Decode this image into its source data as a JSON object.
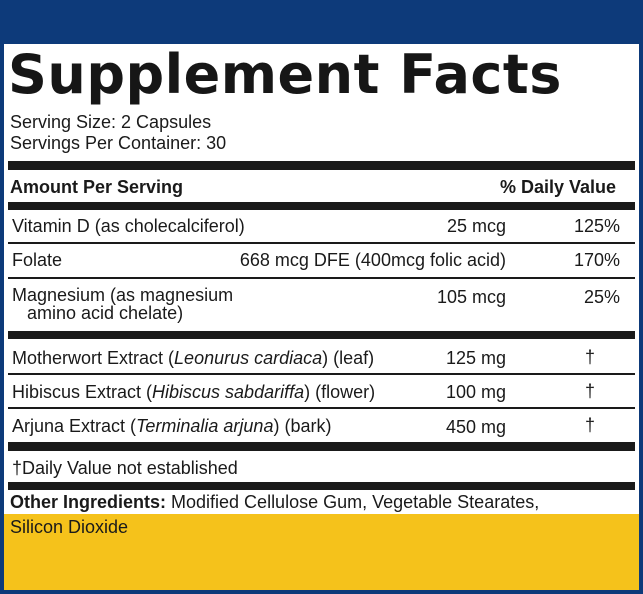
{
  "title": "Supplement Facts",
  "serving_size": "Serving Size: 2 Capsules",
  "servings_per_container": "Servings Per Container: 30",
  "header": {
    "amount_per_serving": "Amount Per Serving",
    "daily_value": "% Daily Value"
  },
  "nutrients": [
    {
      "name": "Vitamin D (as cholecalciferol)",
      "amount": "25 mcg",
      "dv": "125%"
    },
    {
      "name": "Folate",
      "amount": "668 mcg DFE (400mcg folic acid)",
      "dv": "170%"
    },
    {
      "name_line1": "Magnesium (as magnesium",
      "name_line2": "amino acid chelate)",
      "amount": "105 mcg",
      "dv": "25%"
    }
  ],
  "extracts": [
    {
      "prefix": "Motherwort Extract (",
      "latin": "Leonurus cardiaca",
      "suffix": ") (leaf)",
      "amount": "125 mg",
      "dv": "†"
    },
    {
      "prefix": "Hibiscus Extract (",
      "latin": "Hibiscus sabdariffa",
      "suffix": ") (flower)",
      "amount": "100 mg",
      "dv": "†"
    },
    {
      "prefix": "Arjuna Extract (",
      "latin": "Terminalia arjuna",
      "suffix": ") (bark)",
      "amount": "450 mg",
      "dv": "†"
    }
  ],
  "footnote": "†Daily Value not established",
  "other_ingredients": {
    "label": "Other Ingredients:",
    "line1": " Modified Cellulose Gum, Vegetable Stearates,",
    "line2": "Silicon Dioxide"
  },
  "colors": {
    "frame": "#0d3a7a",
    "accent": "#f5c21b",
    "text": "#1a1a1a"
  }
}
